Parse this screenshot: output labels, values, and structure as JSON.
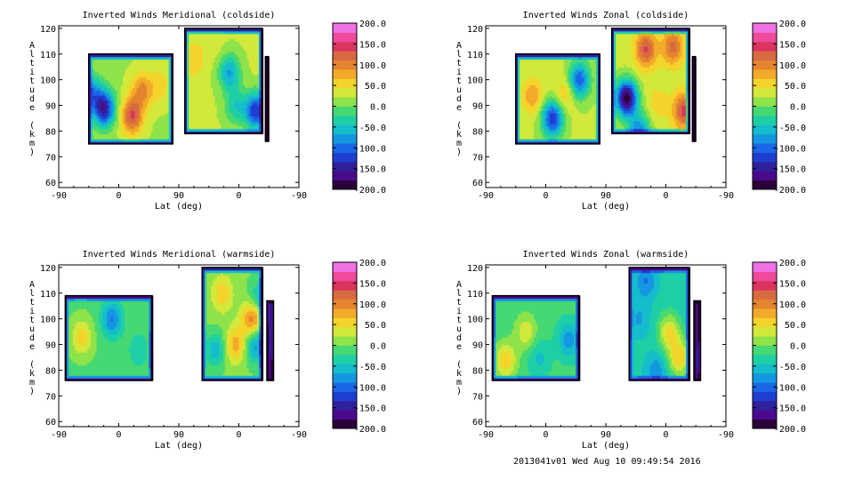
{
  "footer_text": "2013041v01 Wed Aug 10 09:49:54 2016",
  "chart_data": [
    {
      "type": "heatmap",
      "title": "Inverted Winds Meridional (coldside)",
      "xlabel": "Lat (deg)",
      "ylabel": "Altitude (km)",
      "xticks": [
        "-90",
        "0",
        "90",
        "0",
        "-90"
      ],
      "yticks": [
        "60",
        "70",
        "80",
        "90",
        "100",
        "110",
        "120"
      ],
      "ylim": [
        58,
        121
      ],
      "colorbar_ticks": [
        "200.0",
        "150.0",
        "100.0",
        "50.0",
        "0.0",
        "-50.0",
        "-100.0",
        "-150.0",
        "-200.0"
      ],
      "colorbar_range": [
        -200,
        200
      ],
      "regions": [
        {
          "x": [
            -45,
            81
          ],
          "y": [
            75,
            110
          ],
          "base": 20
        },
        {
          "x": [
            99,
            215
          ],
          "y": [
            79,
            120
          ],
          "base": 25
        },
        {
          "x": [
            220,
            224
          ],
          "y": [
            76,
            109
          ],
          "base": -170
        }
      ],
      "features": [
        {
          "x": 20,
          "y": 86,
          "value": 135
        },
        {
          "x": 35,
          "y": 96,
          "value": 95
        },
        {
          "x": -22,
          "y": 89,
          "value": -150
        },
        {
          "x": -42,
          "y": 95,
          "value": -80
        },
        {
          "x": 62,
          "y": 98,
          "value": 55
        },
        {
          "x": 166,
          "y": 103,
          "value": -70
        },
        {
          "x": 175,
          "y": 90,
          "value": -40
        },
        {
          "x": 112,
          "y": 108,
          "value": 65
        },
        {
          "x": 205,
          "y": 88,
          "value": -130
        },
        {
          "x": 140,
          "y": 115,
          "value": 40
        }
      ]
    },
    {
      "type": "heatmap",
      "title": "Inverted Winds Zonal (coldside)",
      "xlabel": "Lat (deg)",
      "ylabel": "Altitude (km)",
      "xticks": [
        "-90",
        "0",
        "90",
        "0",
        "-90"
      ],
      "yticks": [
        "60",
        "70",
        "80",
        "90",
        "100",
        "110",
        "120"
      ],
      "ylim": [
        58,
        121
      ],
      "colorbar_ticks": [
        "200.0",
        "150.0",
        "100.0",
        "50.0",
        "0.0",
        "-50.0",
        "-100.0",
        "-150.0",
        "-200.0"
      ],
      "colorbar_range": [
        -200,
        200
      ],
      "regions": [
        {
          "x": [
            -45,
            81
          ],
          "y": [
            75,
            110
          ],
          "base": 25
        },
        {
          "x": [
            99,
            215
          ],
          "y": [
            79,
            120
          ],
          "base": 30
        },
        {
          "x": [
            220,
            224
          ],
          "y": [
            76,
            109
          ],
          "base": -170
        }
      ],
      "features": [
        {
          "x": -20,
          "y": 94,
          "value": 85
        },
        {
          "x": 30,
          "y": 95,
          "value": 70
        },
        {
          "x": 10,
          "y": 85,
          "value": -130
        },
        {
          "x": 50,
          "y": 100,
          "value": -110
        },
        {
          "x": 121,
          "y": 93,
          "value": -190
        },
        {
          "x": 150,
          "y": 112,
          "value": 135
        },
        {
          "x": 190,
          "y": 113,
          "value": 120
        },
        {
          "x": 207,
          "y": 88,
          "value": 140
        },
        {
          "x": 168,
          "y": 91,
          "value": 55
        },
        {
          "x": 140,
          "y": 80,
          "value": -90
        }
      ]
    },
    {
      "type": "heatmap",
      "title": "Inverted Winds Meridional (warmside)",
      "xlabel": "Lat (deg)",
      "ylabel": "Altitude (km)",
      "xticks": [
        "-90",
        "0",
        "90",
        "0",
        "-90"
      ],
      "yticks": [
        "60",
        "70",
        "80",
        "90",
        "100",
        "110",
        "120"
      ],
      "ylim": [
        58,
        121
      ],
      "colorbar_ticks": [
        "200.0",
        "150.0",
        "100.0",
        "50.0",
        "0.0",
        "-50.0",
        "-100.0",
        "-150.0",
        "-200.0"
      ],
      "colorbar_range": [
        -200,
        200
      ],
      "regions": [
        {
          "x": [
            -80,
            50
          ],
          "y": [
            76,
            109
          ],
          "base": -5
        },
        {
          "x": [
            125,
            215
          ],
          "y": [
            76,
            120
          ],
          "base": 5
        },
        {
          "x": [
            222,
            232
          ],
          "y": [
            76,
            107
          ],
          "base": -150
        }
      ],
      "features": [
        {
          "x": -10,
          "y": 100,
          "value": -90
        },
        {
          "x": -55,
          "y": 93,
          "value": 55
        },
        {
          "x": 30,
          "y": 88,
          "value": -40
        },
        {
          "x": 200,
          "y": 100,
          "value": 110
        },
        {
          "x": 175,
          "y": 90,
          "value": 80
        },
        {
          "x": 155,
          "y": 110,
          "value": 60
        },
        {
          "x": 205,
          "y": 90,
          "value": -80
        },
        {
          "x": 145,
          "y": 88,
          "value": -60
        },
        {
          "x": 210,
          "y": 108,
          "value": -50
        }
      ]
    },
    {
      "type": "heatmap",
      "title": "Inverted Winds Zonal (warmside)",
      "xlabel": "Lat (deg)",
      "ylabel": "Altitude (km)",
      "xticks": [
        "-90",
        "0",
        "90",
        "0",
        "-90"
      ],
      "yticks": [
        "60",
        "70",
        "80",
        "90",
        "100",
        "110",
        "120"
      ],
      "ylim": [
        58,
        121
      ],
      "colorbar_ticks": [
        "200.0",
        "150.0",
        "100.0",
        "50.0",
        "0.0",
        "-50.0",
        "-100.0",
        "-150.0",
        "-200.0"
      ],
      "colorbar_range": [
        -200,
        200
      ],
      "regions": [
        {
          "x": [
            -80,
            50
          ],
          "y": [
            76,
            109
          ],
          "base": -15
        },
        {
          "x": [
            125,
            215
          ],
          "y": [
            76,
            120
          ],
          "base": -35
        },
        {
          "x": [
            222,
            232
          ],
          "y": [
            76,
            107
          ],
          "base": -150
        }
      ],
      "features": [
        {
          "x": -30,
          "y": 95,
          "value": 40
        },
        {
          "x": 35,
          "y": 92,
          "value": -80
        },
        {
          "x": -10,
          "y": 85,
          "value": -50
        },
        {
          "x": -60,
          "y": 84,
          "value": 60
        },
        {
          "x": 185,
          "y": 95,
          "value": 50
        },
        {
          "x": 200,
          "y": 85,
          "value": 60
        },
        {
          "x": 150,
          "y": 115,
          "value": -90
        },
        {
          "x": 165,
          "y": 80,
          "value": -80
        },
        {
          "x": 140,
          "y": 100,
          "value": -70
        }
      ]
    }
  ]
}
